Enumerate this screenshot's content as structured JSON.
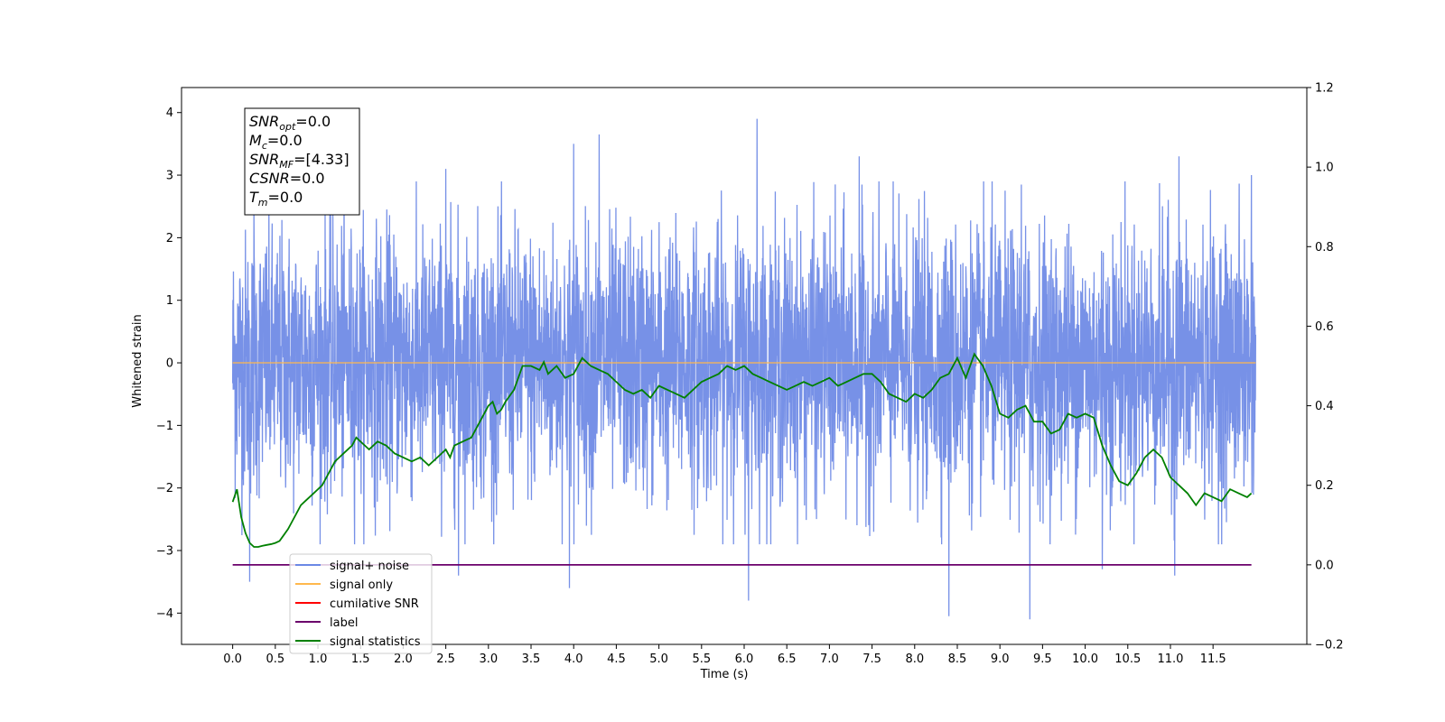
{
  "chart_data": {
    "type": "line",
    "xlabel": "Time (s)",
    "ylabel": "Whitened strain",
    "xlim": [
      -0.6,
      12.6
    ],
    "ylim": [
      -4.5,
      4.4
    ],
    "ylim_right": [
      -0.2,
      1.2
    ],
    "x_ticks": [
      "0.0",
      "0.5",
      "1.0",
      "1.5",
      "2.0",
      "2.5",
      "3.0",
      "3.5",
      "4.0",
      "4.5",
      "5.0",
      "5.5",
      "6.0",
      "6.5",
      "7.0",
      "7.5",
      "8.0",
      "8.5",
      "9.0",
      "9.5",
      "10.0",
      "10.5",
      "11.0",
      "11.5"
    ],
    "y_ticks": [
      "−4",
      "−3",
      "−2",
      "−1",
      "0",
      "1",
      "2",
      "3",
      "4"
    ],
    "y_ticks_right": [
      "−0.2",
      "0.0",
      "0.2",
      "0.4",
      "0.6",
      "0.8",
      "1.0",
      "1.2"
    ],
    "grid": false,
    "legend_position": "lower-left",
    "annotation": {
      "lines": [
        {
          "sym": "SNR",
          "sub": "opt",
          "value": "=0.0"
        },
        {
          "sym": "M",
          "sub": "c",
          "value": "=0.0"
        },
        {
          "sym": "SNR",
          "sub": "MF",
          "value": "=[4.33]"
        },
        {
          "sym": "CSNR",
          "sub": "",
          "value": "=0.0"
        },
        {
          "sym": "T",
          "sub": "m",
          "value": "=0.0"
        }
      ]
    },
    "series": [
      {
        "name": "signal+ noise",
        "color": "#6b88e5",
        "axis": "left",
        "x_range": [
          0.0,
          12.0
        ],
        "samples": 4096,
        "noise_std": 1.05,
        "peaks": [
          {
            "x": 4.0,
            "y": 3.5
          },
          {
            "x": 4.3,
            "y": 3.65
          },
          {
            "x": 6.15,
            "y": 3.9
          },
          {
            "x": 7.35,
            "y": 3.3
          },
          {
            "x": 9.25,
            "y": 2.85
          },
          {
            "x": 11.1,
            "y": 3.3
          },
          {
            "x": 11.95,
            "y": 3.0
          },
          {
            "x": 2.5,
            "y": 3.1
          },
          {
            "x": 0.25,
            "y": 2.5
          },
          {
            "x": 3.95,
            "y": -3.6
          },
          {
            "x": 6.05,
            "y": -3.8
          },
          {
            "x": 8.4,
            "y": -4.05
          },
          {
            "x": 9.35,
            "y": -4.1
          },
          {
            "x": 0.2,
            "y": -3.5
          },
          {
            "x": 2.65,
            "y": -3.4
          },
          {
            "x": 10.2,
            "y": -3.3
          },
          {
            "x": 11.05,
            "y": -3.4
          }
        ]
      },
      {
        "name": "signal only",
        "color": "#ffb84d",
        "axis": "left",
        "x": [
          0.0,
          12.0
        ],
        "y": [
          0.0,
          0.0
        ]
      },
      {
        "name": "cumilative SNR",
        "color": "#ff0000",
        "axis": "right",
        "x": [],
        "y": []
      },
      {
        "name": "label",
        "color": "#6b006b",
        "axis": "right",
        "x": [
          0.0,
          11.95
        ],
        "y": [
          0.0,
          0.0
        ]
      },
      {
        "name": "signal statistics",
        "color": "#008000",
        "axis": "right",
        "x": [
          0.0,
          0.05,
          0.1,
          0.15,
          0.2,
          0.25,
          0.3,
          0.35,
          0.4,
          0.45,
          0.5,
          0.55,
          0.6,
          0.65,
          0.7,
          0.75,
          0.8,
          0.85,
          0.9,
          0.95,
          1.0,
          1.05,
          1.1,
          1.15,
          1.2,
          1.25,
          1.3,
          1.35,
          1.4,
          1.45,
          1.5,
          1.6,
          1.7,
          1.8,
          1.9,
          2.0,
          2.1,
          2.2,
          2.3,
          2.4,
          2.5,
          2.55,
          2.6,
          2.7,
          2.8,
          2.9,
          3.0,
          3.05,
          3.1,
          3.15,
          3.2,
          3.3,
          3.4,
          3.5,
          3.6,
          3.65,
          3.7,
          3.8,
          3.9,
          4.0,
          4.1,
          4.2,
          4.3,
          4.4,
          4.5,
          4.6,
          4.7,
          4.8,
          4.9,
          5.0,
          5.1,
          5.2,
          5.3,
          5.4,
          5.5,
          5.6,
          5.7,
          5.8,
          5.9,
          6.0,
          6.1,
          6.2,
          6.3,
          6.4,
          6.5,
          6.6,
          6.7,
          6.8,
          6.9,
          7.0,
          7.1,
          7.2,
          7.3,
          7.4,
          7.5,
          7.6,
          7.7,
          7.8,
          7.9,
          8.0,
          8.1,
          8.2,
          8.3,
          8.4,
          8.5,
          8.6,
          8.7,
          8.8,
          8.9,
          9.0,
          9.1,
          9.2,
          9.3,
          9.4,
          9.5,
          9.6,
          9.7,
          9.8,
          9.9,
          10.0,
          10.1,
          10.2,
          10.3,
          10.4,
          10.5,
          10.6,
          10.7,
          10.8,
          10.9,
          11.0,
          11.1,
          11.2,
          11.3,
          11.4,
          11.5,
          11.6,
          11.7,
          11.8,
          11.9,
          11.95
        ],
        "y": [
          0.158,
          0.19,
          0.12,
          0.08,
          0.055,
          0.045,
          0.045,
          0.048,
          0.05,
          0.052,
          0.055,
          0.06,
          0.075,
          0.09,
          0.11,
          0.13,
          0.15,
          0.16,
          0.17,
          0.18,
          0.19,
          0.2,
          0.22,
          0.24,
          0.26,
          0.27,
          0.28,
          0.29,
          0.3,
          0.32,
          0.31,
          0.29,
          0.31,
          0.3,
          0.28,
          0.27,
          0.26,
          0.27,
          0.25,
          0.27,
          0.29,
          0.27,
          0.3,
          0.31,
          0.32,
          0.36,
          0.4,
          0.41,
          0.38,
          0.39,
          0.41,
          0.44,
          0.5,
          0.5,
          0.49,
          0.51,
          0.48,
          0.5,
          0.47,
          0.48,
          0.52,
          0.5,
          0.49,
          0.48,
          0.46,
          0.44,
          0.43,
          0.44,
          0.42,
          0.45,
          0.44,
          0.43,
          0.42,
          0.44,
          0.46,
          0.47,
          0.48,
          0.5,
          0.49,
          0.5,
          0.48,
          0.47,
          0.46,
          0.45,
          0.44,
          0.45,
          0.46,
          0.45,
          0.46,
          0.47,
          0.45,
          0.46,
          0.47,
          0.48,
          0.48,
          0.46,
          0.43,
          0.42,
          0.41,
          0.43,
          0.42,
          0.44,
          0.47,
          0.48,
          0.52,
          0.47,
          0.53,
          0.5,
          0.45,
          0.38,
          0.37,
          0.39,
          0.4,
          0.36,
          0.36,
          0.33,
          0.34,
          0.38,
          0.37,
          0.38,
          0.37,
          0.3,
          0.25,
          0.21,
          0.2,
          0.23,
          0.27,
          0.29,
          0.27,
          0.22,
          0.2,
          0.18,
          0.15,
          0.18,
          0.17,
          0.16,
          0.19,
          0.18,
          0.17,
          0.18
        ]
      }
    ]
  }
}
